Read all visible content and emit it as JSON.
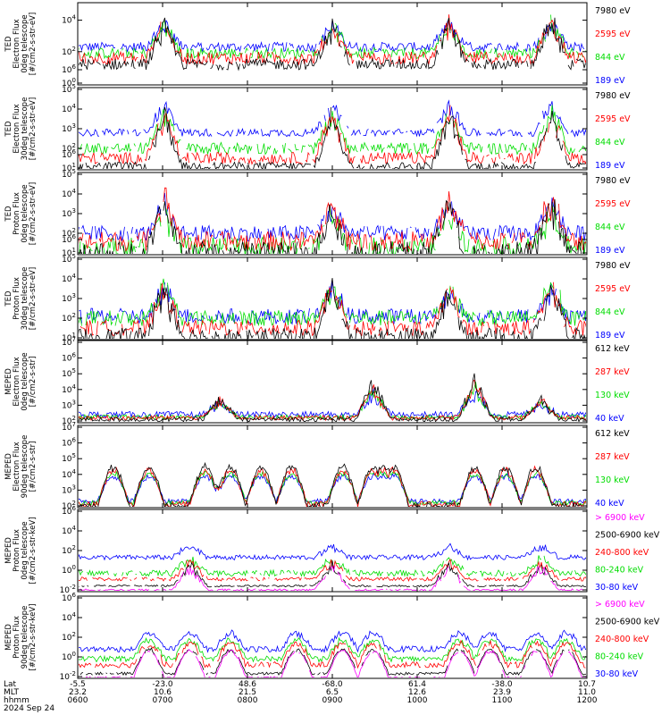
{
  "colors": {
    "blue": "#0000ff",
    "red": "#ff0000",
    "green": "#00dd00",
    "black": "#000000",
    "magenta": "#ff00ff",
    "frame": "#000000",
    "background": "#ffffff"
  },
  "chart_data": [
    {
      "type": "line",
      "ylabel": [
        "TED",
        "Electron Flux",
        "0deg telescope",
        "[#/cm2-s-str-eV]"
      ],
      "ylim": [
        1,
        100000
      ],
      "yscale": "log",
      "yticks": [
        {
          "exp": "0"
        },
        {
          "exp": "2"
        },
        {
          "exp": "4"
        },
        {
          "exp": "6"
        }
      ],
      "series": [
        {
          "name": "7980 eV",
          "color": "#000000",
          "baseline": 1.2,
          "noise": 0.35,
          "gaps": true
        },
        {
          "name": "2595 eV",
          "color": "#ff0000",
          "baseline": 1.6,
          "noise": 0.4,
          "gaps": true
        },
        {
          "name": "844 eV",
          "color": "#00dd00",
          "baseline": 1.9,
          "noise": 0.35,
          "gaps": true
        },
        {
          "name": "189 eV",
          "color": "#0000ff",
          "baseline": 2.3,
          "noise": 0.3,
          "gaps": true
        }
      ],
      "bursts": [
        [
          0.17,
          3.0
        ],
        [
          0.5,
          2.8
        ],
        [
          0.73,
          2.9
        ],
        [
          0.93,
          3.2
        ]
      ]
    },
    {
      "type": "line",
      "ylabel": [
        "TED",
        "Electron Flux",
        "30deg telescope",
        "[#/cm2-s-str-eV]"
      ],
      "ylim": [
        10,
        100000
      ],
      "yscale": "log",
      "yticks": [
        {
          "exp": "1"
        },
        {
          "exp": "2"
        },
        {
          "exp": "3"
        },
        {
          "exp": "4"
        },
        {
          "exp": "5"
        },
        {
          "exp": "6"
        }
      ],
      "series": [
        {
          "name": "7980 eV",
          "color": "#000000",
          "baseline": 1.1,
          "noise": 0.2,
          "gaps": true
        },
        {
          "name": "2595 eV",
          "color": "#ff0000",
          "baseline": 1.5,
          "noise": 0.3,
          "gaps": true
        },
        {
          "name": "844 eV",
          "color": "#00dd00",
          "baseline": 2.0,
          "noise": 0.3,
          "gaps": true
        },
        {
          "name": "189 eV",
          "color": "#0000ff",
          "baseline": 2.8,
          "noise": 0.2,
          "gaps": true
        }
      ],
      "bursts": [
        [
          0.17,
          3.0
        ],
        [
          0.5,
          2.9
        ],
        [
          0.73,
          3.0
        ],
        [
          0.93,
          3.1
        ]
      ]
    },
    {
      "type": "line",
      "ylabel": [
        "TED",
        "Proton Flux",
        "0deg telescope",
        "[#/cm2-s-str-eV]"
      ],
      "ylim": [
        10,
        100000
      ],
      "yscale": "log",
      "yticks": [
        {
          "exp": "1"
        },
        {
          "exp": "2"
        },
        {
          "exp": "3"
        },
        {
          "exp": "4"
        },
        {
          "exp": "5"
        },
        {
          "exp": "6"
        }
      ],
      "series": [
        {
          "name": "7980 eV",
          "color": "#000000",
          "baseline": 1.0,
          "noise": 0.6,
          "gaps": true
        },
        {
          "name": "2595 eV",
          "color": "#ff0000",
          "baseline": 1.6,
          "noise": 0.5,
          "gaps": true
        },
        {
          "name": "844 eV",
          "color": "#00dd00",
          "baseline": 1.3,
          "noise": 0.5,
          "gaps": true
        },
        {
          "name": "189 eV",
          "color": "#0000ff",
          "baseline": 2.0,
          "noise": 0.4,
          "gaps": true
        }
      ],
      "bursts": [
        [
          0.17,
          3.0
        ],
        [
          0.5,
          2.6
        ],
        [
          0.73,
          2.8
        ],
        [
          0.93,
          3.0
        ]
      ]
    },
    {
      "type": "line",
      "ylabel": [
        "TED",
        "Proton Flux",
        "30deg telescope",
        "[#/cm2-s-str-eV]"
      ],
      "ylim": [
        10,
        100000
      ],
      "yscale": "log",
      "yticks": [
        {
          "exp": "1"
        },
        {
          "exp": "2"
        },
        {
          "exp": "3"
        },
        {
          "exp": "4"
        },
        {
          "exp": "5"
        },
        {
          "exp": "6"
        }
      ],
      "series": [
        {
          "name": "7980 eV",
          "color": "#000000",
          "baseline": 1.1,
          "noise": 0.4,
          "gaps": true
        },
        {
          "name": "2595 eV",
          "color": "#ff0000",
          "baseline": 1.5,
          "noise": 0.4,
          "gaps": true
        },
        {
          "name": "844 eV",
          "color": "#00dd00",
          "baseline": 2.0,
          "noise": 0.4,
          "gaps": true
        },
        {
          "name": "189 eV",
          "color": "#0000ff",
          "baseline": 2.1,
          "noise": 0.4,
          "gaps": true
        }
      ],
      "bursts": [
        [
          0.17,
          2.8
        ],
        [
          0.5,
          2.8
        ],
        [
          0.73,
          2.6
        ],
        [
          0.93,
          3.0
        ]
      ]
    },
    {
      "type": "line",
      "ylabel": [
        "MEPED",
        "Electron Flux",
        "0deg telescope",
        "[#/cm2-s-str]"
      ],
      "ylim": [
        100,
        10000000
      ],
      "yscale": "log",
      "yticks": [
        {
          "exp": "2"
        },
        {
          "exp": "3"
        },
        {
          "exp": "4"
        },
        {
          "exp": "5"
        },
        {
          "exp": "6"
        },
        {
          "exp": "7"
        }
      ],
      "series": [
        {
          "name": "612 keV",
          "color": "#000000",
          "baseline": 2.1,
          "noise": 0.15,
          "gaps": false
        },
        {
          "name": "287 keV",
          "color": "#ff0000",
          "baseline": 2.2,
          "noise": 0.15,
          "gaps": false
        },
        {
          "name": "130 keV",
          "color": "#00dd00",
          "baseline": 2.25,
          "noise": 0.15,
          "gaps": false
        },
        {
          "name": "40 keV",
          "color": "#0000ff",
          "baseline": 2.4,
          "noise": 0.2,
          "gaps": false
        }
      ],
      "bursts": [
        [
          0.28,
          1.5
        ],
        [
          0.58,
          2.8
        ],
        [
          0.78,
          3.0
        ],
        [
          0.91,
          1.5
        ]
      ]
    },
    {
      "type": "line",
      "ylabel": [
        "MEPED",
        "Electron Flux",
        "90deg telescope",
        "[#/cm2-s-str]"
      ],
      "ylim": [
        100,
        10000000
      ],
      "yscale": "log",
      "yticks": [
        {
          "exp": "2"
        },
        {
          "exp": "3"
        },
        {
          "exp": "4"
        },
        {
          "exp": "5"
        },
        {
          "exp": "6"
        },
        {
          "exp": "7"
        }
      ],
      "series": [
        {
          "name": "612 keV",
          "color": "#000000",
          "baseline": 2.0,
          "noise": 0.2,
          "gaps": false
        },
        {
          "name": "287 keV",
          "color": "#ff0000",
          "baseline": 2.1,
          "noise": 0.2,
          "gaps": false
        },
        {
          "name": "130 keV",
          "color": "#00dd00",
          "baseline": 2.2,
          "noise": 0.15,
          "gaps": false
        },
        {
          "name": "40 keV",
          "color": "#0000ff",
          "baseline": 2.3,
          "noise": 0.15,
          "gaps": false
        }
      ],
      "humps": [
        0.07,
        0.14,
        0.25,
        0.3,
        0.36,
        0.42,
        0.52,
        0.58,
        0.62,
        0.78,
        0.84,
        0.9
      ],
      "bursts": []
    },
    {
      "type": "line",
      "ylabel": [
        "MEPED",
        "Proton Flux",
        "0deg telescope",
        "[#/cm2-s-str-keV]"
      ],
      "ylim": [
        0.01,
        1000000
      ],
      "yscale": "log",
      "yticks": [
        {
          "exp": "-2"
        },
        {
          "exp": "0"
        },
        {
          "exp": "2"
        },
        {
          "exp": "4"
        },
        {
          "exp": "6"
        }
      ],
      "series": [
        {
          "name": "> 6900 keV",
          "color": "#ff00ff",
          "baseline": -2.0,
          "noise": 0.1,
          "gaps": true
        },
        {
          "name": "2500-6900 keV",
          "color": "#000000",
          "baseline": -1.6,
          "noise": 0.1,
          "gaps": true
        },
        {
          "name": "240-800 keV",
          "color": "#ff0000",
          "baseline": -0.9,
          "noise": 0.2,
          "gaps": true
        },
        {
          "name": "80-240 keV",
          "color": "#00dd00",
          "baseline": -0.3,
          "noise": 0.3,
          "gaps": true
        },
        {
          "name": "30-80 keV",
          "color": "#0000ff",
          "baseline": 1.3,
          "noise": 0.25,
          "gaps": false
        }
      ],
      "bursts": [
        [
          0.22,
          2.5
        ],
        [
          0.5,
          2.5
        ],
        [
          0.73,
          2.5
        ],
        [
          0.91,
          2.5
        ]
      ]
    },
    {
      "type": "line",
      "ylabel": [
        "MEPED",
        "Proton Flux",
        "90deg telescope",
        "[#/cm2-s-str-keV]"
      ],
      "ylim": [
        0.01,
        1000000
      ],
      "yscale": "log",
      "yticks": [
        {
          "exp": "-2"
        },
        {
          "exp": "0"
        },
        {
          "exp": "2"
        },
        {
          "exp": "4"
        },
        {
          "exp": "6"
        }
      ],
      "series": [
        {
          "name": "> 6900 keV",
          "color": "#ff00ff",
          "baseline": -2.1,
          "noise": 0.1,
          "gaps": true
        },
        {
          "name": "2500-6900 keV",
          "color": "#000000",
          "baseline": -1.7,
          "noise": 0.15,
          "gaps": true
        },
        {
          "name": "240-800 keV",
          "color": "#ff0000",
          "baseline": -0.8,
          "noise": 0.3,
          "gaps": true
        },
        {
          "name": "80-240 keV",
          "color": "#00dd00",
          "baseline": -0.2,
          "noise": 0.3,
          "gaps": false
        },
        {
          "name": "30-80 keV",
          "color": "#0000ff",
          "baseline": 0.8,
          "noise": 0.3,
          "gaps": false
        }
      ],
      "humps": [
        0.14,
        0.22,
        0.3,
        0.43,
        0.52,
        0.58,
        0.75,
        0.81,
        0.9,
        0.96
      ],
      "bursts": []
    }
  ],
  "footer": {
    "rows": [
      {
        "label": "Lat",
        "values": [
          "-5.5",
          "-23.0",
          "48.6",
          "-68.0",
          "61.4",
          "-38.0",
          "10.7"
        ]
      },
      {
        "label": "MLT",
        "values": [
          "23.2",
          "10.6",
          "21.5",
          "6.5",
          "12.6",
          "23.9",
          "11.0"
        ]
      },
      {
        "label": "hhmm",
        "values": [
          "0600",
          "0700",
          "0800",
          "0900",
          "1000",
          "1100",
          "1200"
        ]
      }
    ],
    "date": "2024 Sep 24"
  }
}
